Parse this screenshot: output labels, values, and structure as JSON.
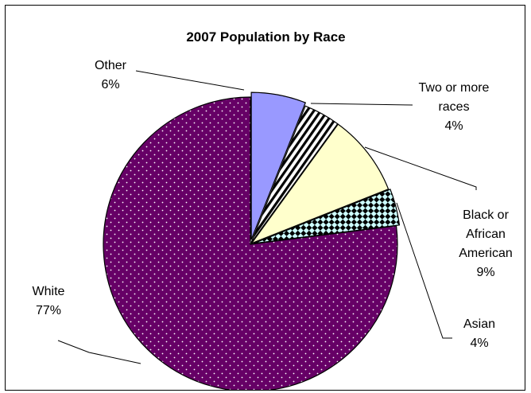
{
  "chart_data": {
    "type": "pie",
    "title": "2007 Population by Race",
    "slices": [
      {
        "name": "Other",
        "value": 6,
        "label_lines": [
          "Other",
          "6%"
        ],
        "color": "#9999ff",
        "pattern": "solid"
      },
      {
        "name": "Two or more races",
        "value": 4,
        "label_lines": [
          "Two or more",
          "races",
          "4%"
        ],
        "color": "#ffffff",
        "pattern": "diagonal-stripes"
      },
      {
        "name": "Black or African American",
        "value": 9,
        "label_lines": [
          "Black or",
          "African",
          "American",
          "9%"
        ],
        "color": "#ffffcc",
        "pattern": "solid"
      },
      {
        "name": "Asian",
        "value": 4,
        "label_lines": [
          "Asian",
          "4%"
        ],
        "color": "#ccffff",
        "pattern": "checkerboard"
      },
      {
        "name": "White",
        "value": 77,
        "label_lines": [
          "White",
          "77%"
        ],
        "color": "#660066",
        "pattern": "dotted"
      }
    ]
  }
}
